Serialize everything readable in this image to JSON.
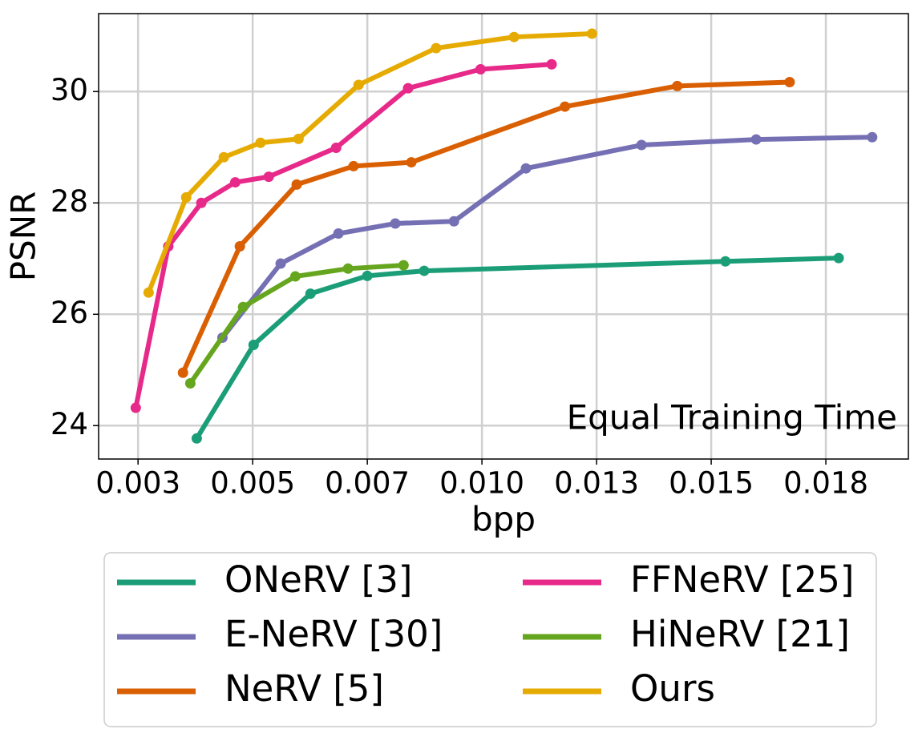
{
  "chart_data": {
    "type": "line",
    "xlabel": "bpp",
    "ylabel": "PSNR",
    "annotation": "Equal Training Time",
    "xlim": [
      0.00164,
      0.0193
    ],
    "ylim": [
      23.4,
      31.4
    ],
    "xticks": [
      {
        "value": 0.0025,
        "label": "0.003"
      },
      {
        "value": 0.005,
        "label": "0.005"
      },
      {
        "value": 0.0075,
        "label": "0.007"
      },
      {
        "value": 0.01,
        "label": "0.010"
      },
      {
        "value": 0.0125,
        "label": "0.013"
      },
      {
        "value": 0.015,
        "label": "0.015"
      },
      {
        "value": 0.0175,
        "label": "0.018"
      }
    ],
    "yticks": [
      24,
      26,
      28,
      30
    ],
    "grid": true,
    "legend": "below",
    "series": [
      {
        "name": "ONeRV [3]",
        "color": "#1b9e77",
        "x": [
          0.00378,
          0.00502,
          0.00626,
          0.0075,
          0.00874,
          0.01531,
          0.01778
        ],
        "values": [
          23.77,
          25.45,
          26.37,
          26.69,
          26.78,
          26.95,
          27.01
        ]
      },
      {
        "name": "E-NeRV [30]",
        "color": "#7570b3",
        "x": [
          0.00434,
          0.00561,
          0.00687,
          0.00811,
          0.00939,
          0.01096,
          0.01348,
          0.01598,
          0.01851
        ],
        "values": [
          25.58,
          26.91,
          27.45,
          27.63,
          27.67,
          28.62,
          29.04,
          29.14,
          29.18
        ]
      },
      {
        "name": "NeRV [5]",
        "color": "#d95f02",
        "x": [
          0.00348,
          0.00472,
          0.00596,
          0.0072,
          0.00846,
          0.01181,
          0.01426,
          0.01671
        ],
        "values": [
          24.95,
          27.22,
          28.33,
          28.66,
          28.73,
          29.73,
          30.1,
          30.17
        ]
      },
      {
        "name": "FFNeRV [25]",
        "color": "#e7298a",
        "x": [
          0.00245,
          0.00316,
          0.00388,
          0.00462,
          0.00535,
          0.00682,
          0.00839,
          0.00997,
          0.01152
        ],
        "values": [
          24.32,
          27.22,
          28.0,
          28.37,
          28.47,
          28.99,
          30.06,
          30.4,
          30.49
        ]
      },
      {
        "name": "HiNeRV [21]",
        "color": "#66a61e",
        "x": [
          0.00364,
          0.00479,
          0.00593,
          0.00708,
          0.00829
        ],
        "values": [
          24.76,
          26.13,
          26.68,
          26.82,
          26.88
        ]
      },
      {
        "name": "Ours",
        "color": "#e6ab02",
        "x": [
          0.00273,
          0.00355,
          0.00437,
          0.00517,
          0.006,
          0.00731,
          0.009,
          0.0107,
          0.0124
        ],
        "values": [
          26.39,
          28.1,
          28.82,
          29.08,
          29.15,
          30.12,
          30.78,
          30.98,
          31.04
        ]
      }
    ]
  }
}
